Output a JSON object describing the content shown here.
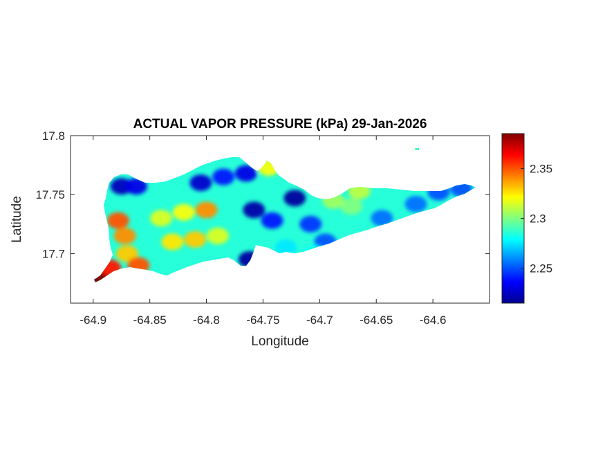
{
  "chart_data": {
    "type": "heatmap",
    "title": "ACTUAL VAPOR PRESSURE (kPa) 29-Jan-2026",
    "xlabel": "Longitude",
    "ylabel": "Latitude",
    "xlim": [
      -64.92,
      -64.55
    ],
    "ylim": [
      17.658,
      17.8
    ],
    "x_ticks": [
      -64.9,
      -64.85,
      -64.8,
      -64.75,
      -64.7,
      -64.65,
      -64.6
    ],
    "x_tick_labels": [
      "-64.9",
      "-64.85",
      "-64.8",
      "-64.75",
      "-64.7",
      "-64.65",
      "-64.6"
    ],
    "y_ticks": [
      17.7,
      17.75,
      17.8
    ],
    "y_tick_labels": [
      "17.7",
      "17.75",
      "17.8"
    ],
    "colorbar": {
      "colormap": "jet",
      "range": [
        2.215,
        2.385
      ],
      "ticks": [
        2.25,
        2.3,
        2.35
      ],
      "tick_labels": [
        "2.25",
        "2.3",
        "2.35"
      ]
    },
    "grid": false,
    "background_value": 2.285,
    "hotspots": [
      {
        "x": -64.875,
        "y": 17.757,
        "v": 2.225
      },
      {
        "x": -64.862,
        "y": 17.757,
        "v": 2.232
      },
      {
        "x": -64.805,
        "y": 17.76,
        "v": 2.228
      },
      {
        "x": -64.785,
        "y": 17.765,
        "v": 2.24
      },
      {
        "x": -64.765,
        "y": 17.768,
        "v": 2.232
      },
      {
        "x": -64.758,
        "y": 17.737,
        "v": 2.222
      },
      {
        "x": -64.742,
        "y": 17.728,
        "v": 2.24
      },
      {
        "x": -64.722,
        "y": 17.747,
        "v": 2.22
      },
      {
        "x": -64.708,
        "y": 17.725,
        "v": 2.245
      },
      {
        "x": -64.695,
        "y": 17.71,
        "v": 2.25
      },
      {
        "x": -64.762,
        "y": 17.695,
        "v": 2.22
      },
      {
        "x": -64.645,
        "y": 17.73,
        "v": 2.255
      },
      {
        "x": -64.615,
        "y": 17.742,
        "v": 2.255
      },
      {
        "x": -64.595,
        "y": 17.752,
        "v": 2.25
      },
      {
        "x": -64.575,
        "y": 17.755,
        "v": 2.25
      },
      {
        "x": -64.878,
        "y": 17.728,
        "v": 2.35
      },
      {
        "x": -64.872,
        "y": 17.715,
        "v": 2.34
      },
      {
        "x": -64.87,
        "y": 17.7,
        "v": 2.33
      },
      {
        "x": -64.86,
        "y": 17.69,
        "v": 2.35
      },
      {
        "x": -64.895,
        "y": 17.68,
        "v": 2.385
      },
      {
        "x": -64.885,
        "y": 17.688,
        "v": 2.36
      },
      {
        "x": -64.8,
        "y": 17.737,
        "v": 2.34
      },
      {
        "x": -64.83,
        "y": 17.71,
        "v": 2.325
      },
      {
        "x": -64.81,
        "y": 17.712,
        "v": 2.33
      },
      {
        "x": -64.82,
        "y": 17.735,
        "v": 2.32
      },
      {
        "x": -64.84,
        "y": 17.73,
        "v": 2.315
      },
      {
        "x": -64.79,
        "y": 17.715,
        "v": 2.315
      },
      {
        "x": -64.745,
        "y": 17.773,
        "v": 2.32
      },
      {
        "x": -64.672,
        "y": 17.74,
        "v": 2.3
      },
      {
        "x": -64.688,
        "y": 17.745,
        "v": 2.305
      },
      {
        "x": -64.665,
        "y": 17.753,
        "v": 2.31
      },
      {
        "x": -64.625,
        "y": 17.788,
        "v": 2.31
      },
      {
        "x": -64.705,
        "y": 17.7,
        "v": 2.28
      },
      {
        "x": -64.73,
        "y": 17.705,
        "v": 2.275
      }
    ]
  }
}
